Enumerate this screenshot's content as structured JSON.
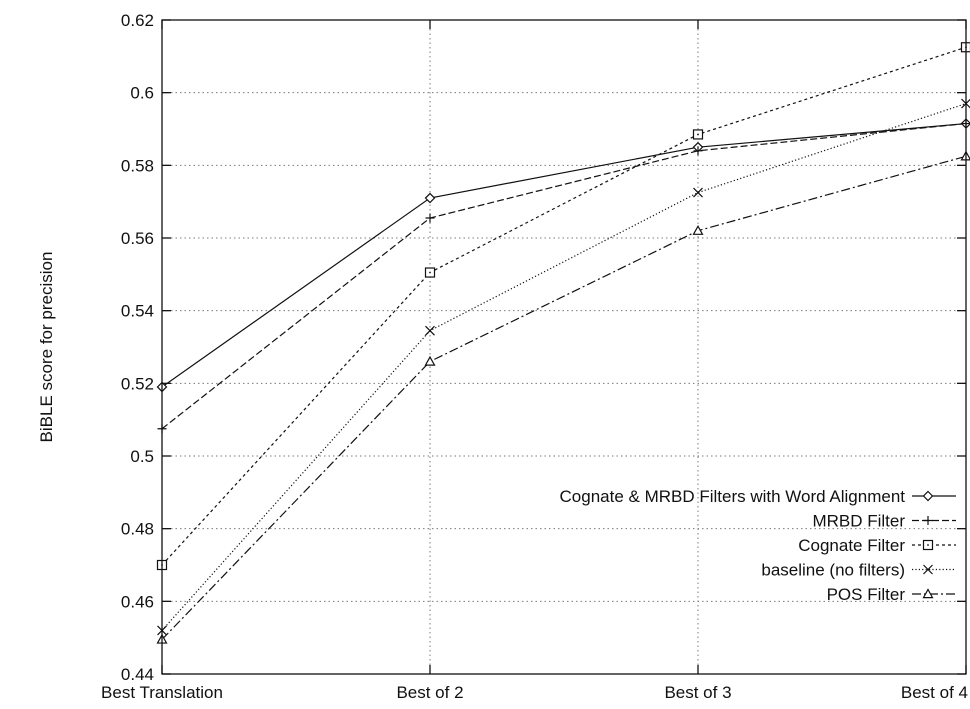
{
  "chart_data": {
    "type": "line",
    "title": "",
    "xlabel": "",
    "ylabel": "BiBLE score for precision",
    "categories": [
      "Best Translation",
      "Best of 2",
      "Best of 3",
      "Best of 4"
    ],
    "ylim": [
      0.44,
      0.62
    ],
    "yticks": [
      "0.44",
      "0.46",
      "0.48",
      "0.5",
      "0.52",
      "0.54",
      "0.56",
      "0.58",
      "0.6",
      "0.62"
    ],
    "grid": true,
    "legend_position": "bottom-right",
    "series": [
      {
        "name": "Cognate & MRBD Filters with Word Alignment",
        "values": [
          0.519,
          0.571,
          0.585,
          0.5915
        ],
        "marker": "diamond",
        "dash": "solid",
        "color": "#111111"
      },
      {
        "name": "MRBD Filter",
        "values": [
          0.5075,
          0.5655,
          0.584,
          0.5915
        ],
        "marker": "plus",
        "dash": "dashed",
        "color": "#111111"
      },
      {
        "name": "Cognate Filter",
        "values": [
          0.47,
          0.5505,
          0.5885,
          0.6125
        ],
        "marker": "square",
        "dash": "short-dash",
        "color": "#111111"
      },
      {
        "name": "baseline (no filters)",
        "values": [
          0.452,
          0.5345,
          0.5725,
          0.597
        ],
        "marker": "cross",
        "dash": "dotted",
        "color": "#111111"
      },
      {
        "name": "POS Filter",
        "values": [
          0.4495,
          0.526,
          0.562,
          0.5825
        ],
        "marker": "triangle",
        "dash": "dash-dot",
        "color": "#111111"
      }
    ]
  }
}
